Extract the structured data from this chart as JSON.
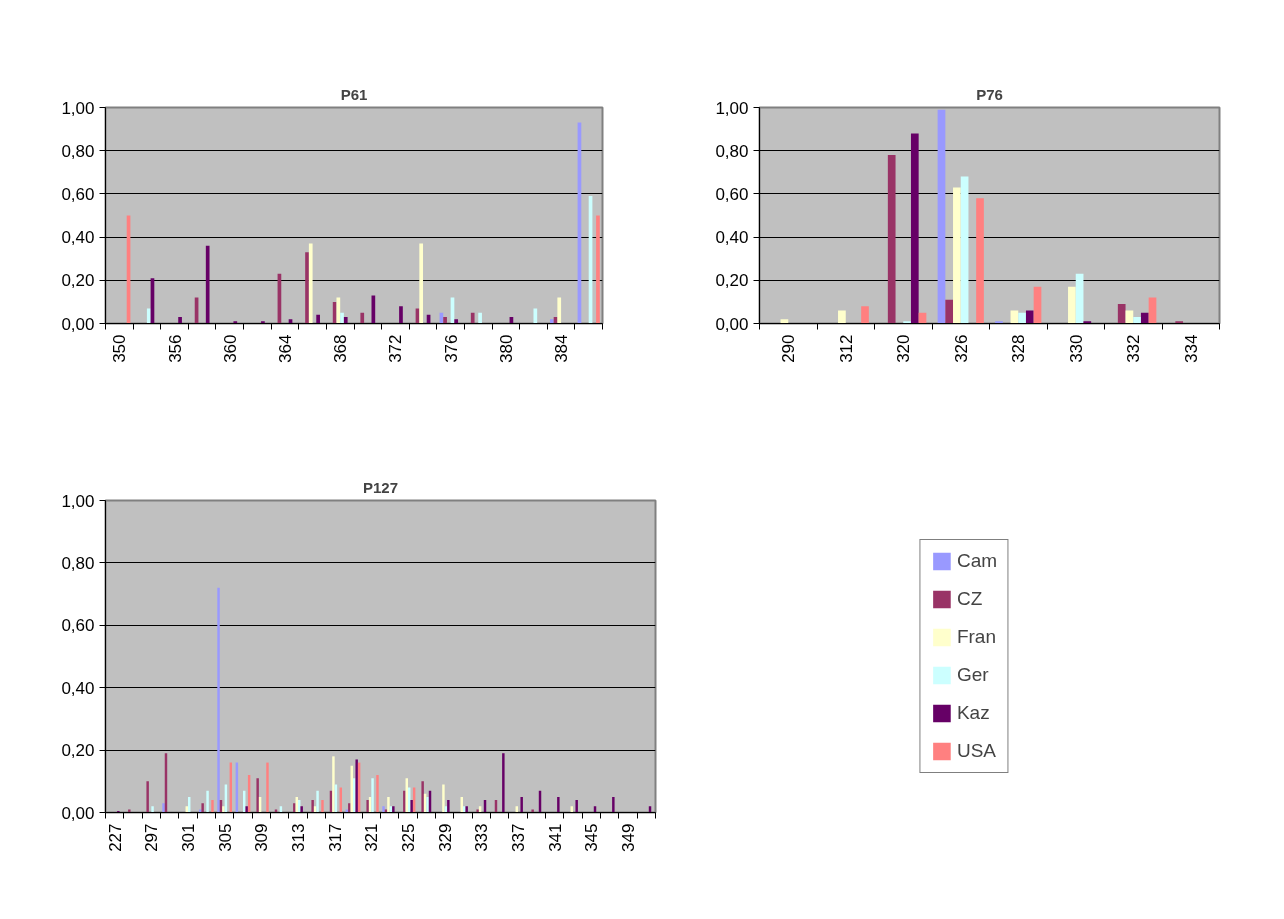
{
  "chart_data": [
    {
      "type": "bar",
      "title": "P61",
      "categories": [
        "350",
        null,
        "356",
        null,
        "360",
        null,
        "364",
        null,
        "368",
        null,
        "372",
        null,
        "376",
        null,
        "380",
        null,
        "384",
        null
      ],
      "series": [
        {
          "color": "#9999ff",
          "values": [
            null,
            null,
            null,
            null,
            null,
            null,
            null,
            null,
            null,
            null,
            null,
            null,
            0.05,
            null,
            null,
            null,
            0.02,
            0.93
          ]
        },
        {
          "color": "#993366",
          "values": [
            null,
            null,
            null,
            0.12,
            null,
            null,
            0.23,
            0.33,
            0.1,
            0.05,
            null,
            0.07,
            0.03,
            0.05,
            null,
            null,
            0.03,
            null
          ]
        },
        {
          "color": "#ffffcc",
          "values": [
            null,
            null,
            null,
            null,
            null,
            null,
            null,
            0.37,
            0.12,
            null,
            null,
            0.37,
            null,
            null,
            null,
            null,
            0.12,
            null
          ]
        },
        {
          "color": "#ccffff",
          "values": [
            null,
            0.07,
            null,
            null,
            null,
            null,
            null,
            null,
            0.05,
            null,
            null,
            null,
            0.12,
            0.05,
            null,
            0.07,
            null,
            0.59
          ]
        },
        {
          "color": "#660066",
          "values": [
            null,
            0.21,
            0.03,
            0.36,
            0.01,
            0.01,
            0.02,
            0.04,
            0.03,
            0.13,
            0.08,
            0.04,
            0.02,
            null,
            0.03,
            null,
            null,
            null
          ]
        },
        {
          "color": "#ff8080",
          "values": [
            0.5,
            null,
            null,
            null,
            null,
            null,
            null,
            null,
            null,
            null,
            null,
            null,
            null,
            null,
            null,
            null,
            null,
            0.5
          ]
        }
      ],
      "ylim": [
        0,
        1
      ],
      "yticks": [
        {
          "value": 0,
          "label": "0,00"
        },
        {
          "value": 0.2,
          "label": "0,20"
        },
        {
          "value": 0.4,
          "label": "0,40"
        },
        {
          "value": 0.6,
          "label": "0,60"
        },
        {
          "value": 0.8,
          "label": "0,80"
        },
        {
          "value": 1,
          "label": "1,00"
        }
      ],
      "grid": "y",
      "legend": false
    },
    {
      "type": "bar",
      "title": "P76",
      "categories": [
        "290",
        "312",
        "320",
        "326",
        "328",
        "330",
        "332",
        "334"
      ],
      "series": [
        {
          "color": "#9999ff",
          "values": [
            null,
            null,
            null,
            0.99,
            0.01,
            null,
            null,
            null
          ]
        },
        {
          "color": "#993366",
          "values": [
            null,
            null,
            0.78,
            0.11,
            null,
            null,
            0.09,
            0.01
          ]
        },
        {
          "color": "#ffffcc",
          "values": [
            0.02,
            0.06,
            null,
            0.63,
            0.06,
            0.17,
            0.06,
            null
          ]
        },
        {
          "color": "#ccffff",
          "values": [
            null,
            null,
            0.01,
            0.68,
            0.05,
            0.23,
            0.03,
            null
          ]
        },
        {
          "color": "#660066",
          "values": [
            null,
            null,
            0.88,
            null,
            0.06,
            0.01,
            0.05,
            null
          ]
        },
        {
          "color": "#ff8080",
          "values": [
            null,
            0.08,
            0.05,
            0.58,
            0.17,
            null,
            0.12,
            null
          ]
        }
      ],
      "ylim": [
        0,
        1
      ],
      "yticks": [
        {
          "value": 0,
          "label": "0,00"
        },
        {
          "value": 0.2,
          "label": "0,20"
        },
        {
          "value": 0.4,
          "label": "0,40"
        },
        {
          "value": 0.6,
          "label": "0,60"
        },
        {
          "value": 0.8,
          "label": "0,80"
        },
        {
          "value": 1,
          "label": "1,00"
        }
      ],
      "grid": "y",
      "legend": false
    },
    {
      "type": "bar",
      "title": "P127",
      "categories": [
        "227",
        null,
        "297",
        null,
        "301",
        null,
        "305",
        null,
        "309",
        null,
        "313",
        null,
        "317",
        null,
        "321",
        null,
        "325",
        null,
        "329",
        null,
        "333",
        null,
        "337",
        null,
        "341",
        null,
        "345",
        null,
        "349",
        null
      ],
      "series": [
        {
          "name": "Cam",
          "color": "#9999ff",
          "values": [
            null,
            null,
            null,
            0.03,
            null,
            0.01,
            0.72,
            0.16,
            null,
            null,
            null,
            null,
            null,
            0.01,
            null,
            0.02,
            null,
            null,
            null,
            null,
            null,
            null,
            null,
            null,
            null,
            null,
            null,
            null,
            null,
            null
          ]
        },
        {
          "name": "CZ",
          "color": "#993366",
          "values": [
            null,
            0.01,
            0.1,
            0.19,
            null,
            0.03,
            0.04,
            null,
            0.11,
            0.01,
            0.03,
            0.04,
            0.07,
            0.03,
            0.04,
            0.01,
            0.07,
            0.1,
            null,
            null,
            0.01,
            0.04,
            null,
            0.01,
            null,
            null,
            null,
            null,
            null,
            null
          ]
        },
        {
          "name": "Fran",
          "color": "#ffffcc",
          "values": [
            null,
            null,
            null,
            null,
            0.02,
            null,
            0.02,
            null,
            0.05,
            null,
            0.05,
            0.02,
            0.18,
            0.15,
            0.05,
            0.05,
            0.11,
            0.06,
            0.09,
            0.05,
            0.02,
            null,
            0.02,
            null,
            null,
            0.02,
            null,
            null,
            null,
            null
          ]
        },
        {
          "name": "Ger",
          "color": "#ccffff",
          "values": [
            null,
            null,
            0.02,
            null,
            0.05,
            0.07,
            0.09,
            0.07,
            null,
            0.02,
            0.04,
            0.07,
            0.09,
            0.11,
            0.11,
            0.02,
            0.08,
            0.05,
            0.02,
            0.02,
            null,
            null,
            null,
            null,
            null,
            null,
            null,
            null,
            null,
            null
          ]
        },
        {
          "name": "Kaz",
          "color": "#660066",
          "values": [
            0.005,
            null,
            null,
            null,
            null,
            null,
            null,
            0.02,
            null,
            null,
            0.02,
            null,
            null,
            0.17,
            null,
            0.02,
            0.04,
            0.07,
            0.04,
            0.02,
            0.04,
            0.19,
            0.05,
            0.07,
            0.05,
            0.04,
            0.02,
            0.05,
            null,
            0.02
          ]
        },
        {
          "name": "USA",
          "color": "#ff8080",
          "values": [
            null,
            null,
            null,
            null,
            null,
            0.04,
            0.16,
            0.12,
            0.16,
            null,
            null,
            0.04,
            0.08,
            0.16,
            0.12,
            null,
            0.08,
            null,
            null,
            null,
            null,
            null,
            null,
            null,
            null,
            null,
            null,
            null,
            null,
            null
          ]
        }
      ],
      "ylim": [
        0,
        1
      ],
      "yticks": [
        {
          "value": 0,
          "label": "0,00"
        },
        {
          "value": 0.2,
          "label": "0,20"
        },
        {
          "value": 0.4,
          "label": "0,40"
        },
        {
          "value": 0.6,
          "label": "0,60"
        },
        {
          "value": 0.8,
          "label": "0,80"
        },
        {
          "value": 1,
          "label": "1,00"
        }
      ],
      "grid": "y",
      "legend": "right"
    }
  ]
}
